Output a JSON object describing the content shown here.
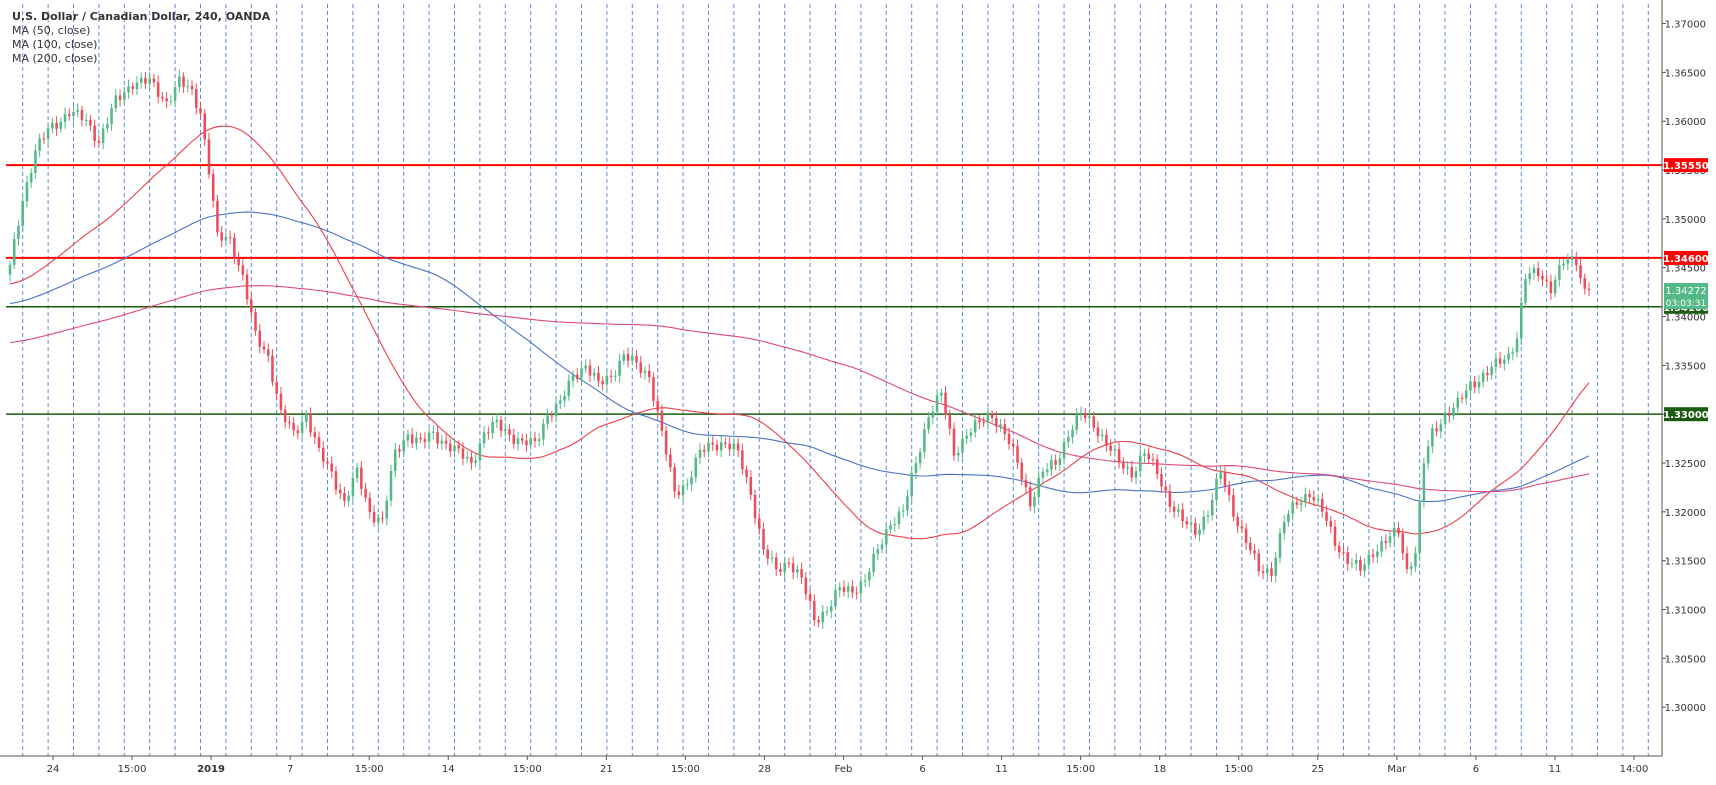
{
  "header": {
    "title": "U.S. Dollar / Canadian Dollar, 240, OANDA",
    "indicators": [
      "MA (50, close)",
      "MA (100, close)",
      "MA (200, close)"
    ]
  },
  "countdown": "03:03:31",
  "colors": {
    "up": "#53b987",
    "down": "#eb4d5c",
    "ma50": "#ec3f4b",
    "ma100": "#4a72c4",
    "ma200": "#e0497a",
    "resistance": "#ff0000",
    "support": "#1a5c0f",
    "session": "#3d78d8",
    "price_tag": "#53b987"
  },
  "chart_data": {
    "type": "candlestick",
    "symbol": "USDCAD",
    "timeframe": "240",
    "ylim": [
      1.295,
      1.372
    ],
    "y_ticks": [
      "1.37000",
      "1.36500",
      "1.36000",
      "1.35500",
      "1.35000",
      "1.34500",
      "1.34000",
      "1.33500",
      "1.33000",
      "1.32500",
      "1.32000",
      "1.31500",
      "1.31000",
      "1.30500",
      "1.30000"
    ],
    "x_ticks": [
      "24",
      "15:00",
      "2019",
      "7",
      "15:00",
      "14",
      "15:00",
      "21",
      "15:00",
      "28",
      "Feb",
      "6",
      "11",
      "15:00",
      "18",
      "15:00",
      "25",
      "Mar",
      "6",
      "11",
      "14:00"
    ],
    "horizontal_levels": [
      {
        "label": "1.35550",
        "value": 1.3555,
        "kind": "resistance"
      },
      {
        "label": "1.34600",
        "value": 1.346,
        "kind": "resistance"
      },
      {
        "label": "1.34100",
        "value": 1.341,
        "kind": "support"
      },
      {
        "label": "1.33000",
        "value": 1.33,
        "kind": "support"
      }
    ],
    "last_price": {
      "label": "1.34272",
      "value": 1.34272
    },
    "anchors": [
      [
        0,
        1.345
      ],
      [
        3,
        1.352
      ],
      [
        6,
        1.357
      ],
      [
        9,
        1.359
      ],
      [
        14,
        1.361
      ],
      [
        18,
        1.36
      ],
      [
        21,
        1.358
      ],
      [
        25,
        1.362
      ],
      [
        29,
        1.364
      ],
      [
        33,
        1.364
      ],
      [
        37,
        1.362
      ],
      [
        40,
        1.364
      ],
      [
        43,
        1.363
      ],
      [
        45,
        1.361
      ],
      [
        47,
        1.355
      ],
      [
        49,
        1.348
      ],
      [
        52,
        1.348
      ],
      [
        55,
        1.344
      ],
      [
        58,
        1.338
      ],
      [
        61,
        1.336
      ],
      [
        64,
        1.33
      ],
      [
        67,
        1.328
      ],
      [
        70,
        1.33
      ],
      [
        73,
        1.326
      ],
      [
        76,
        1.324
      ],
      [
        79,
        1.321
      ],
      [
        82,
        1.324
      ],
      [
        85,
        1.32
      ],
      [
        88,
        1.319
      ],
      [
        91,
        1.326
      ],
      [
        94,
        1.328
      ],
      [
        97,
        1.327
      ],
      [
        100,
        1.328
      ],
      [
        103,
        1.327
      ],
      [
        106,
        1.326
      ],
      [
        109,
        1.325
      ],
      [
        112,
        1.328
      ],
      [
        115,
        1.329
      ],
      [
        118,
        1.328
      ],
      [
        121,
        1.327
      ],
      [
        124,
        1.327
      ],
      [
        127,
        1.33
      ],
      [
        130,
        1.331
      ],
      [
        133,
        1.334
      ],
      [
        136,
        1.335
      ],
      [
        139,
        1.333
      ],
      [
        142,
        1.334
      ],
      [
        145,
        1.336
      ],
      [
        148,
        1.335
      ],
      [
        151,
        1.334
      ],
      [
        154,
        1.328
      ],
      [
        157,
        1.322
      ],
      [
        160,
        1.323
      ],
      [
        163,
        1.326
      ],
      [
        166,
        1.327
      ],
      [
        169,
        1.327
      ],
      [
        172,
        1.326
      ],
      [
        175,
        1.322
      ],
      [
        178,
        1.316
      ],
      [
        181,
        1.314
      ],
      [
        184,
        1.315
      ],
      [
        187,
        1.313
      ],
      [
        190,
        1.309
      ],
      [
        193,
        1.31
      ],
      [
        196,
        1.312
      ],
      [
        199,
        1.312
      ],
      [
        202,
        1.313
      ],
      [
        205,
        1.316
      ],
      [
        208,
        1.319
      ],
      [
        211,
        1.32
      ],
      [
        214,
        1.325
      ],
      [
        217,
        1.33
      ],
      [
        220,
        1.332
      ],
      [
        223,
        1.326
      ],
      [
        226,
        1.328
      ],
      [
        229,
        1.329
      ],
      [
        232,
        1.33
      ],
      [
        235,
        1.328
      ],
      [
        238,
        1.325
      ],
      [
        241,
        1.321
      ],
      [
        244,
        1.324
      ],
      [
        247,
        1.325
      ],
      [
        250,
        1.328
      ],
      [
        253,
        1.33
      ],
      [
        256,
        1.329
      ],
      [
        259,
        1.327
      ],
      [
        262,
        1.325
      ],
      [
        265,
        1.324
      ],
      [
        268,
        1.326
      ],
      [
        271,
        1.324
      ],
      [
        274,
        1.321
      ],
      [
        277,
        1.319
      ],
      [
        280,
        1.318
      ],
      [
        283,
        1.32
      ],
      [
        286,
        1.324
      ],
      [
        289,
        1.32
      ],
      [
        292,
        1.317
      ],
      [
        295,
        1.314
      ],
      [
        298,
        1.314
      ],
      [
        301,
        1.319
      ],
      [
        304,
        1.321
      ],
      [
        307,
        1.322
      ],
      [
        310,
        1.32
      ],
      [
        313,
        1.317
      ],
      [
        316,
        1.315
      ],
      [
        319,
        1.314
      ],
      [
        322,
        1.316
      ],
      [
        325,
        1.317
      ],
      [
        328,
        1.318
      ],
      [
        330,
        1.314
      ],
      [
        332,
        1.316
      ],
      [
        334,
        1.325
      ],
      [
        336,
        1.328
      ],
      [
        339,
        1.33
      ],
      [
        342,
        1.331
      ],
      [
        345,
        1.333
      ],
      [
        348,
        1.334
      ],
      [
        351,
        1.335
      ],
      [
        354,
        1.336
      ],
      [
        356,
        1.338
      ],
      [
        358,
        1.344
      ],
      [
        361,
        1.3445
      ],
      [
        364,
        1.343
      ],
      [
        367,
        1.3455
      ],
      [
        370,
        1.3458
      ],
      [
        372,
        1.3427
      ],
      [
        373,
        1.34272
      ]
    ],
    "n_bars": 374
  }
}
